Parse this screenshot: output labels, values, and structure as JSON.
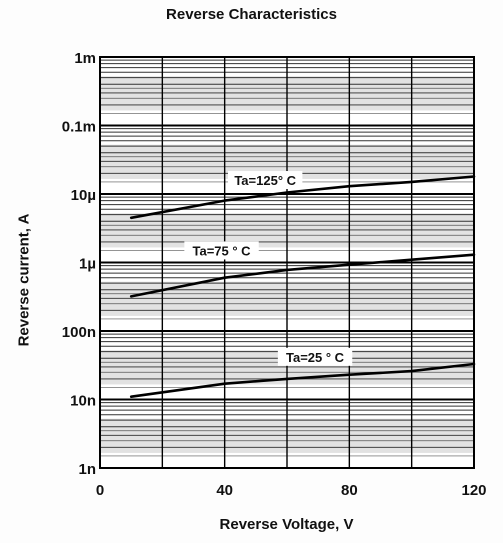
{
  "chart_data": {
    "type": "line",
    "title": "Reverse Characteristics",
    "xlabel": "Reverse Voltage, V",
    "ylabel": "Reverse current, A",
    "xlim": [
      0,
      120
    ],
    "ylim": [
      1e-09,
      0.001
    ],
    "yscale": "log",
    "grid": true,
    "x_ticks": [
      {
        "value": 0,
        "label": "0"
      },
      {
        "value": 40,
        "label": "40"
      },
      {
        "value": 80,
        "label": "80"
      },
      {
        "value": 120,
        "label": "120"
      }
    ],
    "y_ticks": [
      {
        "value": 1e-09,
        "label": "1n"
      },
      {
        "value": 1e-08,
        "label": "10n"
      },
      {
        "value": 1e-07,
        "label": "100n"
      },
      {
        "value": 1e-06,
        "label": "1µ"
      },
      {
        "value": 1e-05,
        "label": "10µ"
      },
      {
        "value": 0.0001,
        "label": "0.1m"
      },
      {
        "value": 0.001,
        "label": "1m"
      }
    ],
    "series": [
      {
        "name": "Ta=125° C",
        "x": [
          10,
          40,
          60,
          80,
          100,
          120
        ],
        "y": [
          4.5e-06,
          8e-06,
          1.05e-05,
          1.3e-05,
          1.5e-05,
          1.8e-05
        ]
      },
      {
        "name": "Ta=75 ° C",
        "x": [
          10,
          40,
          60,
          80,
          100,
          120
        ],
        "y": [
          3.2e-07,
          6e-07,
          7.8e-07,
          9.3e-07,
          1.1e-06,
          1.3e-06
        ]
      },
      {
        "name": "Ta=25 ° C",
        "x": [
          10,
          40,
          60,
          80,
          100,
          120
        ],
        "y": [
          1.1e-08,
          1.7e-08,
          2e-08,
          2.3e-08,
          2.6e-08,
          3.3e-08
        ]
      }
    ],
    "annotations": [
      {
        "text": "Ta=125° C",
        "x": 53,
        "y": 1.6e-05
      },
      {
        "text": "Ta=75 ° C",
        "x": 39,
        "y": 1.5e-06
      },
      {
        "text": "Ta=25 ° C",
        "x": 69,
        "y": 4.2e-08
      }
    ]
  }
}
